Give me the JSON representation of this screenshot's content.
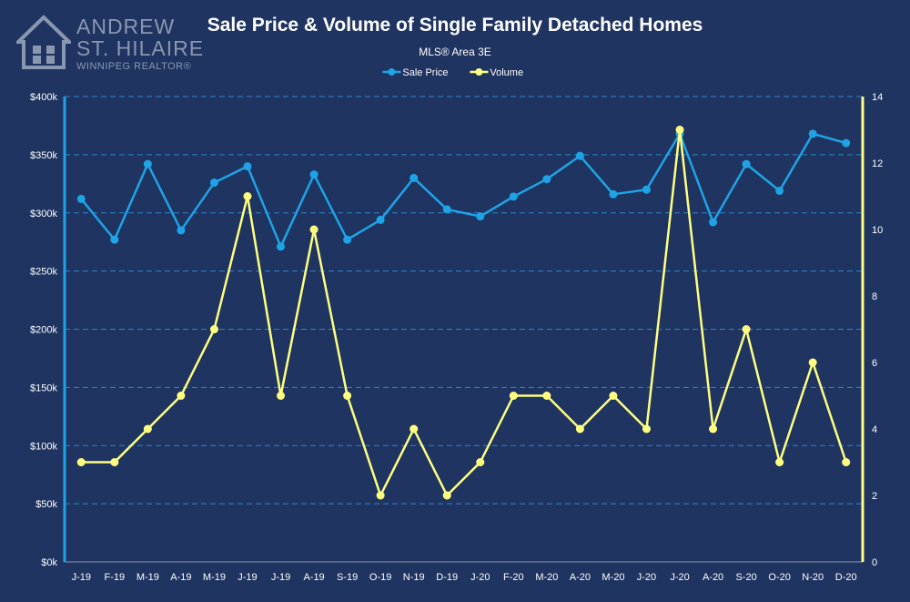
{
  "brand": {
    "line1": "ANDREW",
    "line2": "ST. HILAIRE",
    "line3": "WINNIPEG REALTOR®",
    "color": "#8a97b0"
  },
  "chart_data": {
    "type": "line",
    "title": "Sale Price & Volume of Single Family Detached Homes",
    "subtitle": "MLS® Area 3E",
    "categories": [
      "J-19",
      "F-19",
      "M-19",
      "A-19",
      "M-19",
      "J-19",
      "J-19",
      "A-19",
      "S-19",
      "O-19",
      "N-19",
      "D-19",
      "J-20",
      "F-20",
      "M-20",
      "A-20",
      "M-20",
      "J-20",
      "J-20",
      "A-20",
      "S-20",
      "O-20",
      "N-20",
      "D-20"
    ],
    "series": [
      {
        "name": "Sale Price",
        "axis": "left",
        "color": "#1ea4e6",
        "values": [
          312000,
          277000,
          342000,
          285000,
          326000,
          340000,
          271000,
          333000,
          277000,
          294000,
          330000,
          303000,
          297000,
          314000,
          329000,
          349000,
          316000,
          320000,
          368000,
          292000,
          342000,
          319000,
          368000,
          360000
        ]
      },
      {
        "name": "Volume",
        "axis": "right",
        "color": "#ffff80",
        "values": [
          3,
          3,
          4,
          5,
          7,
          11,
          5,
          10,
          5,
          2,
          4,
          2,
          3,
          5,
          5,
          4,
          5,
          4,
          13,
          4,
          7,
          3,
          6,
          3
        ]
      }
    ],
    "y_left": {
      "min": 0,
      "max": 400000,
      "ticks": [
        0,
        50000,
        100000,
        150000,
        200000,
        250000,
        300000,
        350000,
        400000
      ],
      "tick_labels": [
        "$0k",
        "$50k",
        "$100k",
        "$150k",
        "$200k",
        "$250k",
        "$300k",
        "$350k",
        "$400k"
      ],
      "color": "#1ea4e6"
    },
    "y_right": {
      "min": 0,
      "max": 14,
      "ticks": [
        0,
        2,
        4,
        6,
        8,
        10,
        12,
        14
      ],
      "tick_labels": [
        "0",
        "2",
        "4",
        "6",
        "8",
        "10",
        "12",
        "14"
      ],
      "color": "#ffff80"
    },
    "grid": true,
    "legend_position": "top-center"
  }
}
